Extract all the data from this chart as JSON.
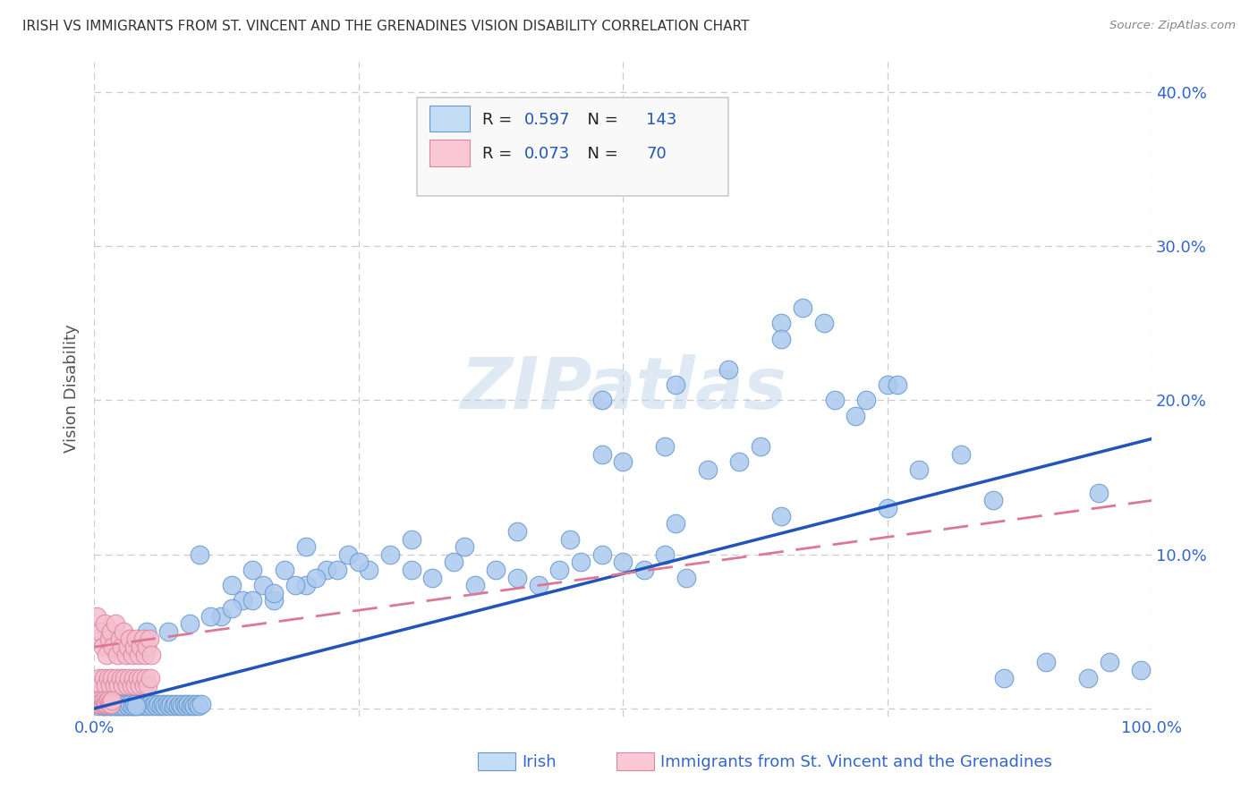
{
  "title": "IRISH VS IMMIGRANTS FROM ST. VINCENT AND THE GRENADINES VISION DISABILITY CORRELATION CHART",
  "source": "Source: ZipAtlas.com",
  "ylabel": "Vision Disability",
  "xlim": [
    0.0,
    1.0
  ],
  "ylim": [
    -0.005,
    0.42
  ],
  "x_ticks": [
    0.0,
    0.25,
    0.5,
    0.75,
    1.0
  ],
  "x_tick_labels": [
    "0.0%",
    "",
    "",
    "",
    "100.0%"
  ],
  "y_ticks": [
    0.0,
    0.1,
    0.2,
    0.3,
    0.4
  ],
  "y_tick_labels": [
    "",
    "10.0%",
    "20.0%",
    "30.0%",
    "40.0%"
  ],
  "irish_R": 0.597,
  "irish_N": 143,
  "svg_R": 0.073,
  "svg_N": 70,
  "blue_fill": "#adc9ef",
  "blue_edge": "#6699cc",
  "pink_fill": "#f5bece",
  "pink_edge": "#d988a0",
  "blue_line": "#2255bb",
  "pink_line": "#dd7799",
  "legend_blue_fill": "#c5dcf5",
  "legend_pink_fill": "#fac8d5",
  "watermark": "ZIPatlas",
  "bg": "#ffffff",
  "grid_color": "#cccccc",
  "title_color": "#333333",
  "tick_color": "#3366cc",
  "ylabel_color": "#555555",
  "source_color": "#888888",
  "irish_x": [
    0.003,
    0.005,
    0.007,
    0.009,
    0.011,
    0.013,
    0.015,
    0.017,
    0.019,
    0.021,
    0.023,
    0.025,
    0.027,
    0.029,
    0.031,
    0.033,
    0.035,
    0.037,
    0.039,
    0.041,
    0.043,
    0.045,
    0.047,
    0.049,
    0.051,
    0.053,
    0.055,
    0.057,
    0.059,
    0.061,
    0.063,
    0.065,
    0.067,
    0.069,
    0.071,
    0.073,
    0.075,
    0.077,
    0.079,
    0.081,
    0.083,
    0.085,
    0.087,
    0.089,
    0.091,
    0.093,
    0.095,
    0.097,
    0.099,
    0.101,
    0.002,
    0.004,
    0.006,
    0.008,
    0.01,
    0.012,
    0.014,
    0.016,
    0.018,
    0.02,
    0.022,
    0.024,
    0.026,
    0.028,
    0.03,
    0.032,
    0.034,
    0.036,
    0.038,
    0.04,
    0.12,
    0.13,
    0.14,
    0.15,
    0.16,
    0.17,
    0.18,
    0.2,
    0.22,
    0.24,
    0.26,
    0.28,
    0.3,
    0.32,
    0.34,
    0.36,
    0.38,
    0.4,
    0.42,
    0.44,
    0.46,
    0.48,
    0.5,
    0.52,
    0.54,
    0.56,
    0.48,
    0.54,
    0.58,
    0.61,
    0.63,
    0.65,
    0.67,
    0.7,
    0.72,
    0.75,
    0.78,
    0.82,
    0.86,
    0.9,
    0.94,
    0.96,
    0.99,
    0.48,
    0.55,
    0.6,
    0.65,
    0.69,
    0.73,
    0.76,
    0.05,
    0.07,
    0.09,
    0.11,
    0.13,
    0.15,
    0.17,
    0.19,
    0.21,
    0.23,
    0.25,
    0.35,
    0.45,
    0.55,
    0.65,
    0.75,
    0.85,
    0.95,
    0.1,
    0.2,
    0.3,
    0.4,
    0.5
  ],
  "irish_y": [
    0.005,
    0.003,
    0.004,
    0.002,
    0.003,
    0.004,
    0.002,
    0.003,
    0.002,
    0.003,
    0.002,
    0.003,
    0.002,
    0.003,
    0.002,
    0.003,
    0.002,
    0.003,
    0.002,
    0.003,
    0.002,
    0.003,
    0.002,
    0.003,
    0.002,
    0.003,
    0.002,
    0.003,
    0.002,
    0.003,
    0.002,
    0.003,
    0.002,
    0.003,
    0.002,
    0.003,
    0.002,
    0.003,
    0.002,
    0.003,
    0.002,
    0.003,
    0.002,
    0.003,
    0.002,
    0.003,
    0.002,
    0.003,
    0.002,
    0.003,
    0.004,
    0.002,
    0.003,
    0.002,
    0.003,
    0.002,
    0.003,
    0.002,
    0.003,
    0.002,
    0.003,
    0.002,
    0.003,
    0.002,
    0.003,
    0.002,
    0.003,
    0.002,
    0.003,
    0.002,
    0.06,
    0.08,
    0.07,
    0.09,
    0.08,
    0.07,
    0.09,
    0.08,
    0.09,
    0.1,
    0.09,
    0.1,
    0.09,
    0.085,
    0.095,
    0.08,
    0.09,
    0.085,
    0.08,
    0.09,
    0.095,
    0.1,
    0.095,
    0.09,
    0.1,
    0.085,
    0.165,
    0.17,
    0.155,
    0.16,
    0.17,
    0.25,
    0.26,
    0.2,
    0.19,
    0.21,
    0.155,
    0.165,
    0.02,
    0.03,
    0.02,
    0.03,
    0.025,
    0.2,
    0.21,
    0.22,
    0.24,
    0.25,
    0.2,
    0.21,
    0.05,
    0.05,
    0.055,
    0.06,
    0.065,
    0.07,
    0.075,
    0.08,
    0.085,
    0.09,
    0.095,
    0.105,
    0.11,
    0.12,
    0.125,
    0.13,
    0.135,
    0.14,
    0.1,
    0.105,
    0.11,
    0.115,
    0.16
  ],
  "svg_x": [
    0.002,
    0.004,
    0.006,
    0.008,
    0.01,
    0.012,
    0.014,
    0.016,
    0.018,
    0.02,
    0.022,
    0.024,
    0.026,
    0.028,
    0.03,
    0.032,
    0.034,
    0.036,
    0.038,
    0.04,
    0.042,
    0.044,
    0.046,
    0.048,
    0.05,
    0.052,
    0.054,
    0.003,
    0.005,
    0.007,
    0.009,
    0.011,
    0.013,
    0.015,
    0.017,
    0.019,
    0.021,
    0.023,
    0.025,
    0.027,
    0.029,
    0.031,
    0.033,
    0.035,
    0.037,
    0.039,
    0.041,
    0.043,
    0.045,
    0.047,
    0.049,
    0.051,
    0.053,
    0.001,
    0.002,
    0.003,
    0.004,
    0.005,
    0.006,
    0.007,
    0.008,
    0.009,
    0.01,
    0.011,
    0.012,
    0.013,
    0.014,
    0.015,
    0.016,
    0.017
  ],
  "svg_y": [
    0.06,
    0.045,
    0.05,
    0.04,
    0.055,
    0.035,
    0.045,
    0.05,
    0.04,
    0.055,
    0.035,
    0.045,
    0.04,
    0.05,
    0.035,
    0.04,
    0.045,
    0.035,
    0.04,
    0.045,
    0.035,
    0.04,
    0.045,
    0.035,
    0.04,
    0.045,
    0.035,
    0.015,
    0.02,
    0.015,
    0.02,
    0.015,
    0.02,
    0.015,
    0.02,
    0.015,
    0.02,
    0.015,
    0.02,
    0.015,
    0.02,
    0.015,
    0.02,
    0.015,
    0.02,
    0.015,
    0.02,
    0.015,
    0.02,
    0.015,
    0.02,
    0.015,
    0.02,
    0.005,
    0.003,
    0.004,
    0.003,
    0.005,
    0.003,
    0.004,
    0.003,
    0.005,
    0.003,
    0.004,
    0.003,
    0.005,
    0.003,
    0.004,
    0.003,
    0.005
  ],
  "irish_line_x": [
    0.0,
    1.0
  ],
  "irish_line_y": [
    0.0,
    0.175
  ],
  "svg_line_x": [
    0.0,
    1.0
  ],
  "svg_line_y": [
    0.04,
    0.135
  ]
}
